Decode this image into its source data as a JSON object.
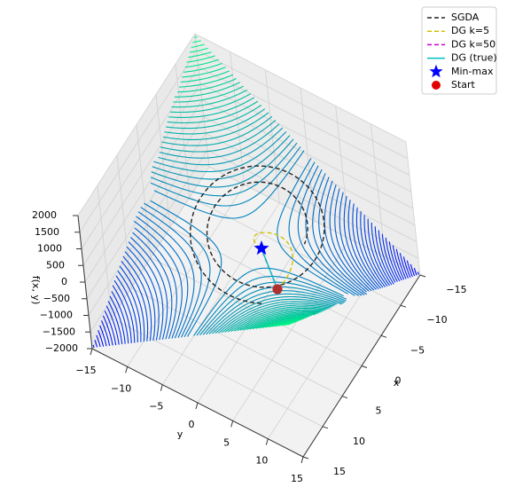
{
  "chart_data": {
    "type": "contour3d",
    "xlabel": "x",
    "ylabel": "y",
    "zlabel": "f(x, y)",
    "xlim": [
      -15,
      15
    ],
    "ylim": [
      -15,
      15
    ],
    "zlim": [
      -2000,
      2000
    ],
    "xticks": [
      {
        "value": -15,
        "label": "−15"
      },
      {
        "value": -10,
        "label": "−10"
      },
      {
        "value": -5,
        "label": "−5"
      },
      0,
      5,
      10,
      15
    ],
    "yticks": [
      {
        "value": -15,
        "label": "−15"
      },
      {
        "value": -10,
        "label": "−10"
      },
      {
        "value": -5,
        "label": "−5"
      },
      0,
      5,
      10,
      15
    ],
    "zticks": [
      2000,
      1500,
      1000,
      500,
      0,
      {
        "value": -500,
        "label": "−500"
      },
      {
        "value": -1000,
        "label": "−1000"
      },
      {
        "value": -1500,
        "label": "−1500"
      },
      {
        "value": -2000,
        "label": "−2000"
      }
    ],
    "grid": true,
    "legend": "upper right",
    "series": [
      {
        "name": "SGDA",
        "color": "#222222",
        "style": "dashed"
      },
      {
        "name": "DG k=5",
        "color": "#d4c000",
        "style": "dashed"
      },
      {
        "name": "DG k=50",
        "color": "#cc00cc",
        "style": "dashed"
      },
      {
        "name": "DG (true)",
        "color": "#00bfbf",
        "style": "solid"
      }
    ],
    "markers": [
      {
        "name": "Min-max",
        "color": "#0000ff",
        "symbol": "star"
      },
      {
        "name": "Start",
        "color": "#e00000",
        "symbol": "circle"
      }
    ]
  }
}
